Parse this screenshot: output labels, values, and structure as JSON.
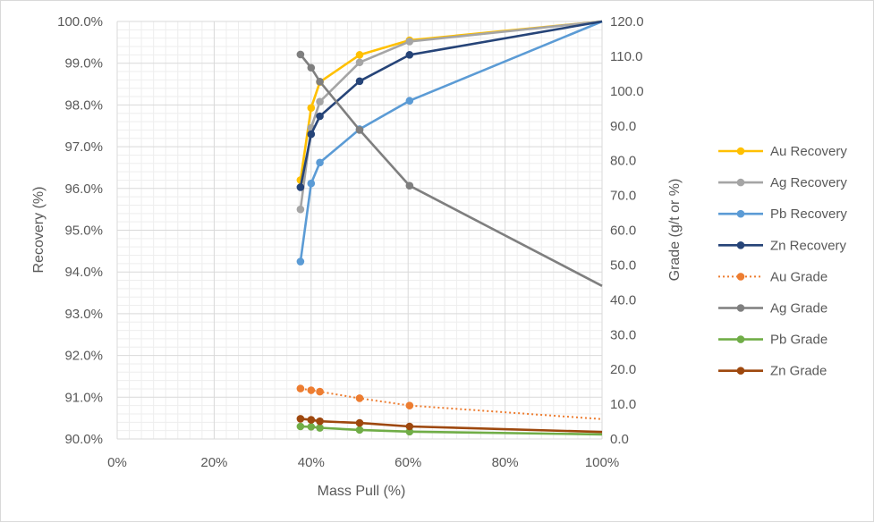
{
  "chart_data": {
    "type": "scatter",
    "title": "",
    "xlabel": "Mass Pull (%)",
    "ylabel_left": "Recovery (%)",
    "ylabel_right": "Grade (g/t or %)",
    "x_range": [
      0,
      100
    ],
    "y_left_range": [
      90,
      100
    ],
    "y_right_range": [
      0,
      120
    ],
    "x_ticks": [
      "0%",
      "20%",
      "40%",
      "60%",
      "80%",
      "100%"
    ],
    "y_left_ticks": [
      "90.0%",
      "91.0%",
      "92.0%",
      "93.0%",
      "94.0%",
      "95.0%",
      "96.0%",
      "97.0%",
      "98.0%",
      "99.0%",
      "100.0%"
    ],
    "y_right_ticks": [
      "0.0",
      "10.0",
      "20.0",
      "30.0",
      "40.0",
      "50.0",
      "60.0",
      "70.0",
      "80.0",
      "90.0",
      "100.0",
      "110.0",
      "120.0"
    ],
    "grid": true,
    "legend_position": "right",
    "series": [
      {
        "name": "Au Recovery",
        "axis": "left",
        "color": "#FFC000",
        "dash": false,
        "x": [
          37.8,
          40.0,
          41.8,
          50.0,
          60.3,
          100
        ],
        "y": [
          96.2,
          97.93,
          98.55,
          99.2,
          99.55,
          100.0
        ],
        "markers": [
          true,
          true,
          true,
          true,
          true,
          false
        ]
      },
      {
        "name": "Ag Recovery",
        "axis": "left",
        "color": "#A5A5A5",
        "dash": false,
        "x": [
          37.8,
          40.0,
          41.8,
          50.0,
          60.3,
          100
        ],
        "y": [
          95.5,
          97.45,
          98.08,
          99.02,
          99.52,
          100.0
        ],
        "markers": [
          true,
          true,
          true,
          true,
          true,
          false
        ]
      },
      {
        "name": "Pb Recovery",
        "axis": "left",
        "color": "#5B9BD5",
        "dash": false,
        "x": [
          37.8,
          40.0,
          41.8,
          50.0,
          60.3,
          100
        ],
        "y": [
          94.25,
          96.12,
          96.62,
          97.42,
          98.1,
          100.0
        ],
        "markers": [
          true,
          true,
          true,
          true,
          true,
          false
        ]
      },
      {
        "name": "Zn Recovery",
        "axis": "left",
        "color": "#264478",
        "dash": false,
        "x": [
          37.8,
          40.0,
          41.8,
          50.0,
          60.3,
          100
        ],
        "y": [
          96.03,
          97.3,
          97.73,
          98.57,
          99.2,
          100.0
        ],
        "markers": [
          true,
          true,
          true,
          true,
          true,
          false
        ]
      },
      {
        "name": "Au Grade",
        "axis": "right",
        "color": "#ED7D31",
        "dash": true,
        "x": [
          37.8,
          40.0,
          41.8,
          50.0,
          60.3,
          100
        ],
        "y": [
          14.5,
          14.0,
          13.6,
          11.7,
          9.6,
          5.7
        ],
        "markers": [
          true,
          true,
          true,
          true,
          true,
          false
        ]
      },
      {
        "name": "Ag Grade",
        "axis": "right",
        "color": "#7F7F7F",
        "dash": false,
        "x": [
          37.8,
          40.0,
          41.8,
          50.0,
          60.3,
          100
        ],
        "y": [
          110.5,
          106.7,
          102.7,
          88.8,
          72.8,
          44.0
        ],
        "markers": [
          true,
          true,
          true,
          true,
          true,
          false
        ]
      },
      {
        "name": "Pb Grade",
        "axis": "right",
        "color": "#70AD47",
        "dash": false,
        "x": [
          37.8,
          40.0,
          41.8,
          50.0,
          60.3,
          100
        ],
        "y": [
          3.6,
          3.5,
          3.2,
          2.6,
          2.1,
          1.3
        ],
        "markers": [
          true,
          true,
          true,
          true,
          true,
          false
        ]
      },
      {
        "name": "Zn Grade",
        "axis": "right",
        "color": "#9E480E",
        "dash": false,
        "x": [
          37.8,
          40.0,
          41.8,
          50.0,
          60.3,
          100
        ],
        "y": [
          5.8,
          5.5,
          5.1,
          4.6,
          3.6,
          2.0
        ],
        "markers": [
          true,
          true,
          true,
          true,
          true,
          false
        ]
      }
    ]
  }
}
